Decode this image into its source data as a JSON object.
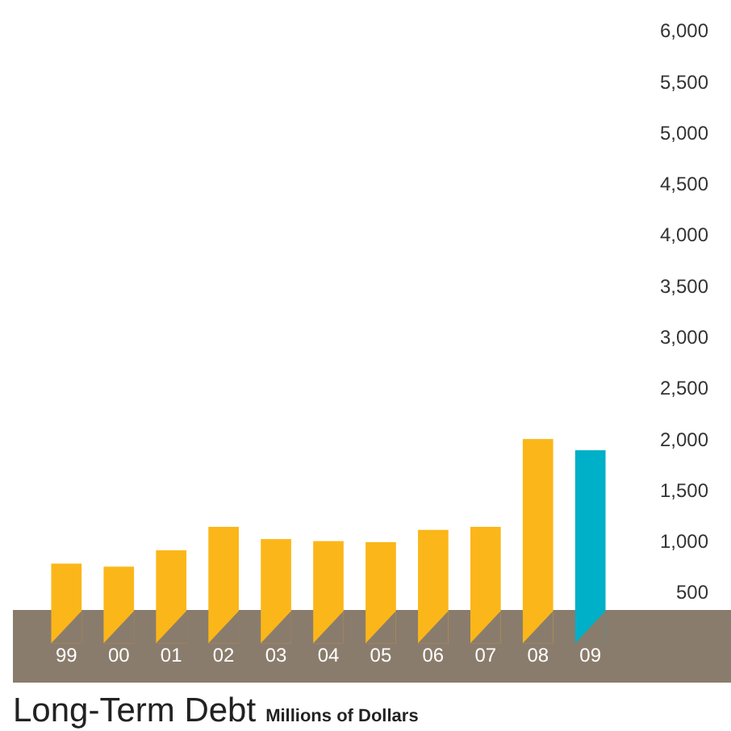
{
  "chart_data": {
    "type": "bar",
    "title": "Long-Term Debt",
    "subtitle": "Millions of Dollars",
    "categories": [
      "99",
      "00",
      "01",
      "02",
      "03",
      "04",
      "05",
      "06",
      "07",
      "08",
      "09"
    ],
    "values": [
      780,
      750,
      910,
      1140,
      1020,
      1000,
      990,
      1110,
      1140,
      2000,
      1890
    ],
    "colors": [
      "#fbb619",
      "#fbb619",
      "#fbb619",
      "#fbb619",
      "#fbb619",
      "#fbb619",
      "#fbb619",
      "#fbb619",
      "#fbb619",
      "#fbb619",
      "#00afc8"
    ],
    "ylim": [
      0,
      6000
    ],
    "yticks": [
      {
        "value": 500,
        "label": "500"
      },
      {
        "value": 1000,
        "label": "1,000"
      },
      {
        "value": 1500,
        "label": "1,500"
      },
      {
        "value": 2000,
        "label": "2,000"
      },
      {
        "value": 2500,
        "label": "2,500"
      },
      {
        "value": 3000,
        "label": "3,000"
      },
      {
        "value": 3500,
        "label": "3,500"
      },
      {
        "value": 4000,
        "label": "4,000"
      },
      {
        "value": 4500,
        "label": "4,500"
      },
      {
        "value": 5000,
        "label": "5,000"
      },
      {
        "value": 5500,
        "label": "5,500"
      },
      {
        "value": 6000,
        "label": "6,000"
      }
    ],
    "grid": false
  }
}
